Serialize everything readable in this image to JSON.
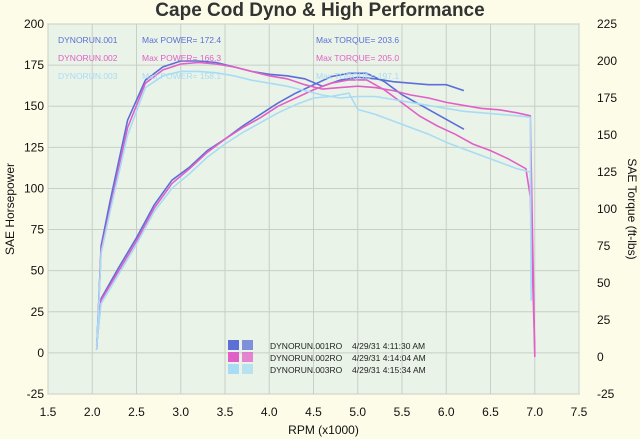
{
  "chart_data": {
    "type": "line",
    "title": "Cape Cod Dyno & High Performance",
    "xlabel": "RPM (x1000)",
    "ylabel_left": "SAE Horsepower",
    "ylabel_right": "SAE Torque (ft-lbs)",
    "xlim": [
      1.5,
      7.5
    ],
    "ylim_left": [
      -25,
      200
    ],
    "ylim_right": [
      -25,
      225
    ],
    "xticks": [
      "1.5",
      "2.0",
      "2.5",
      "3.0",
      "3.5",
      "4.0",
      "4.5",
      "5.0",
      "5.5",
      "6.0",
      "6.5",
      "7.0",
      "7.5"
    ],
    "yticks_left": [
      "-25",
      "0",
      "25",
      "50",
      "75",
      "100",
      "125",
      "150",
      "175",
      "200"
    ],
    "yticks_right": [
      "-25",
      "0",
      "25",
      "50",
      "75",
      "100",
      "125",
      "150",
      "175",
      "200",
      "225"
    ],
    "grid": true,
    "series": [
      {
        "name": "DYNORUN.001",
        "color": "#5b6fd6",
        "max_power_label": "Max POWER= 172.4",
        "max_torque_label": "Max TORQUE= 203.6",
        "legend_label": "DYNORUN.001RO",
        "legend_time": "4/29/31 4:11:30 AM",
        "torque": [
          [
            2.05,
            5
          ],
          [
            2.1,
            75
          ],
          [
            2.2,
            105
          ],
          [
            2.4,
            160
          ],
          [
            2.6,
            187
          ],
          [
            2.8,
            196
          ],
          [
            3.0,
            200
          ],
          [
            3.2,
            200
          ],
          [
            3.4,
            199
          ],
          [
            3.6,
            196
          ],
          [
            3.8,
            193
          ],
          [
            4.0,
            191
          ],
          [
            4.2,
            190
          ],
          [
            4.4,
            188
          ],
          [
            4.6,
            183
          ],
          [
            4.8,
            187
          ],
          [
            5.0,
            189
          ],
          [
            5.2,
            188
          ],
          [
            5.4,
            186
          ],
          [
            5.6,
            185
          ],
          [
            5.8,
            184
          ],
          [
            6.0,
            184
          ],
          [
            6.2,
            180
          ]
        ],
        "horsepower": [
          [
            2.05,
            5
          ],
          [
            2.1,
            33
          ],
          [
            2.3,
            52
          ],
          [
            2.5,
            70
          ],
          [
            2.7,
            90
          ],
          [
            2.9,
            105
          ],
          [
            3.1,
            113
          ],
          [
            3.3,
            123
          ],
          [
            3.5,
            130
          ],
          [
            3.7,
            138
          ],
          [
            3.9,
            145
          ],
          [
            4.1,
            152
          ],
          [
            4.3,
            158
          ],
          [
            4.5,
            163
          ],
          [
            4.7,
            168
          ],
          [
            4.9,
            170
          ],
          [
            5.1,
            170
          ],
          [
            5.3,
            165
          ],
          [
            5.5,
            157
          ],
          [
            5.7,
            151
          ],
          [
            5.9,
            145
          ],
          [
            6.1,
            139
          ],
          [
            6.2,
            136
          ]
        ]
      },
      {
        "name": "DYNORUN.002",
        "color": "#e060c8",
        "max_power_label": "Max POWER= 166.3",
        "max_torque_label": "Max TORQUE= 205.0",
        "legend_label": "DYNORUN.002RO",
        "legend_time": "4/29/31 4:14:04 AM",
        "torque": [
          [
            2.05,
            5
          ],
          [
            2.1,
            72
          ],
          [
            2.2,
            100
          ],
          [
            2.4,
            155
          ],
          [
            2.6,
            185
          ],
          [
            2.8,
            194
          ],
          [
            3.0,
            198
          ],
          [
            3.2,
            199
          ],
          [
            3.4,
            198
          ],
          [
            3.6,
            196
          ],
          [
            3.8,
            193
          ],
          [
            4.0,
            190
          ],
          [
            4.2,
            188
          ],
          [
            4.4,
            184
          ],
          [
            4.6,
            181
          ],
          [
            4.8,
            182
          ],
          [
            5.0,
            183
          ],
          [
            5.2,
            182
          ],
          [
            5.4,
            180
          ],
          [
            5.6,
            177
          ],
          [
            5.8,
            175
          ],
          [
            6.0,
            172
          ],
          [
            6.2,
            170
          ],
          [
            6.4,
            168
          ],
          [
            6.6,
            167
          ],
          [
            6.8,
            165
          ],
          [
            6.95,
            163
          ],
          [
            7.0,
            0
          ]
        ],
        "horsepower": [
          [
            2.05,
            5
          ],
          [
            2.1,
            32
          ],
          [
            2.3,
            50
          ],
          [
            2.5,
            68
          ],
          [
            2.7,
            88
          ],
          [
            2.9,
            103
          ],
          [
            3.1,
            112
          ],
          [
            3.3,
            122
          ],
          [
            3.5,
            130
          ],
          [
            3.7,
            137
          ],
          [
            3.9,
            143
          ],
          [
            4.1,
            150
          ],
          [
            4.3,
            155
          ],
          [
            4.5,
            160
          ],
          [
            4.7,
            164
          ],
          [
            4.9,
            166
          ],
          [
            5.1,
            166
          ],
          [
            5.3,
            160
          ],
          [
            5.5,
            152
          ],
          [
            5.7,
            144
          ],
          [
            5.9,
            138
          ],
          [
            6.1,
            133
          ],
          [
            6.3,
            127
          ],
          [
            6.5,
            123
          ],
          [
            6.7,
            118
          ],
          [
            6.9,
            112
          ],
          [
            6.95,
            95
          ],
          [
            7.0,
            0
          ]
        ]
      },
      {
        "name": "DYNORUN.003",
        "color": "#a8dcf4",
        "max_power_label": "Max POWER= 158.1",
        "max_torque_label": "Max TORQUE= 197.1",
        "legend_label": "DYNORUN.003RO",
        "legend_time": "4/29/31 4:15:34 AM",
        "torque": [
          [
            2.05,
            5
          ],
          [
            2.1,
            70
          ],
          [
            2.2,
            98
          ],
          [
            2.4,
            150
          ],
          [
            2.6,
            182
          ],
          [
            2.8,
            190
          ],
          [
            3.0,
            193
          ],
          [
            3.2,
            193
          ],
          [
            3.4,
            192
          ],
          [
            3.6,
            190
          ],
          [
            3.8,
            187
          ],
          [
            4.0,
            185
          ],
          [
            4.2,
            183
          ],
          [
            4.4,
            180
          ],
          [
            4.6,
            177
          ],
          [
            4.8,
            175
          ],
          [
            5.0,
            176
          ],
          [
            5.2,
            176
          ],
          [
            5.4,
            174
          ],
          [
            5.6,
            172
          ],
          [
            5.8,
            170
          ],
          [
            6.0,
            168
          ],
          [
            6.2,
            166
          ],
          [
            6.4,
            165
          ],
          [
            6.6,
            164
          ],
          [
            6.8,
            163
          ],
          [
            6.95,
            162
          ],
          [
            6.96,
            38
          ]
        ],
        "horsepower": [
          [
            2.05,
            5
          ],
          [
            2.1,
            30
          ],
          [
            2.3,
            48
          ],
          [
            2.5,
            66
          ],
          [
            2.7,
            86
          ],
          [
            2.9,
            100
          ],
          [
            3.1,
            109
          ],
          [
            3.3,
            119
          ],
          [
            3.5,
            127
          ],
          [
            3.7,
            134
          ],
          [
            3.9,
            140
          ],
          [
            4.1,
            146
          ],
          [
            4.3,
            151
          ],
          [
            4.5,
            155
          ],
          [
            4.7,
            156
          ],
          [
            4.9,
            158
          ],
          [
            5.0,
            148
          ],
          [
            5.2,
            145
          ],
          [
            5.4,
            141
          ],
          [
            5.6,
            137
          ],
          [
            5.8,
            133
          ],
          [
            6.0,
            128
          ],
          [
            6.2,
            124
          ],
          [
            6.4,
            120
          ],
          [
            6.6,
            116
          ],
          [
            6.8,
            112
          ],
          [
            6.95,
            110
          ],
          [
            6.96,
            38
          ]
        ]
      }
    ],
    "legend_top_positions": "top-left",
    "legend_bottom_position": "bottom-center"
  }
}
